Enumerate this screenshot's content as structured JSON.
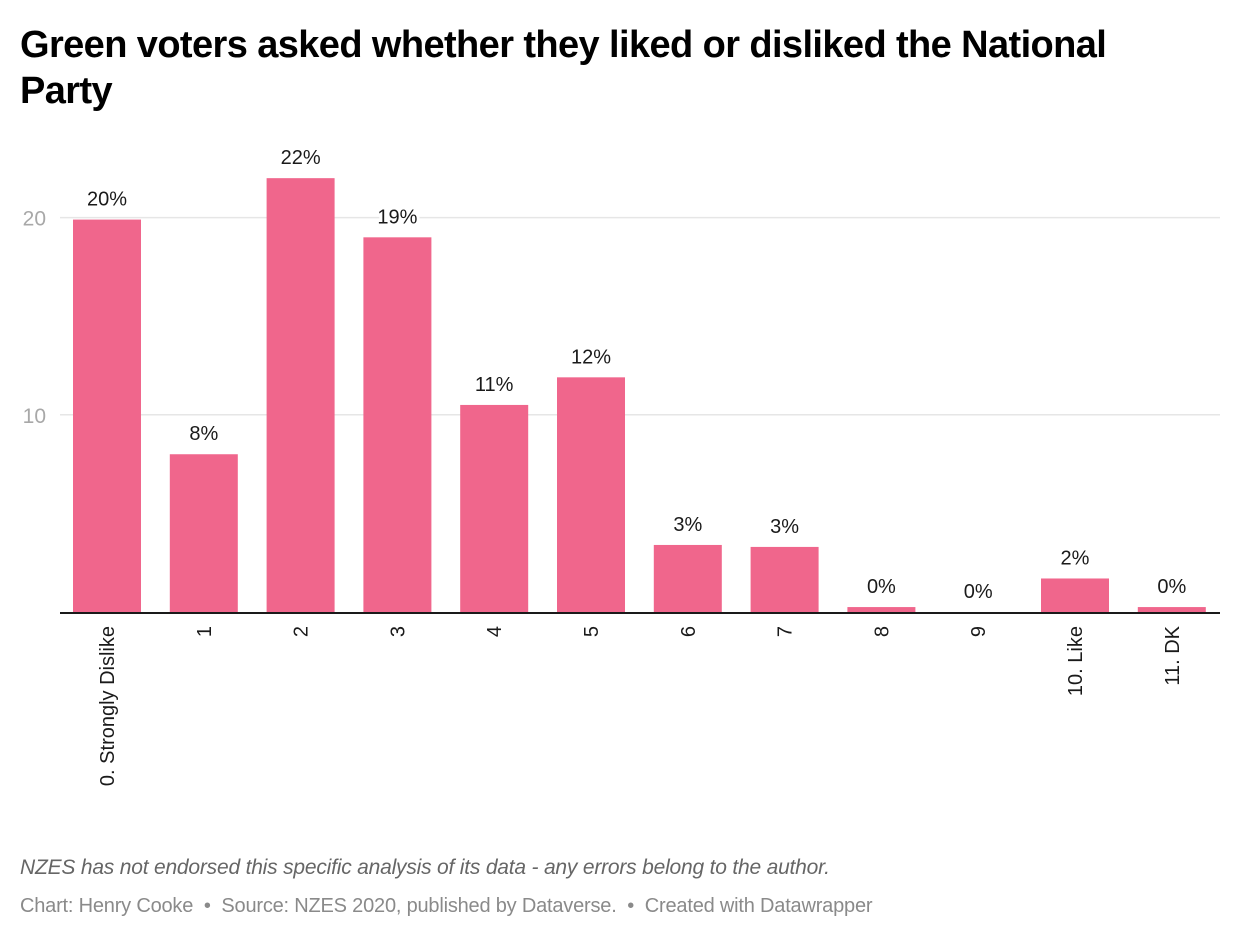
{
  "header": {
    "title": "Green voters asked whether they liked or disliked the National Party"
  },
  "chart_data": {
    "type": "bar",
    "title": "Green voters asked whether they liked or disliked the National Party",
    "xlabel": "",
    "ylabel": "",
    "categories": [
      "0. Strongly Dislike",
      "1",
      "2",
      "3",
      "4",
      "5",
      "6",
      "7",
      "8",
      "9",
      "10. Like",
      "11. DK"
    ],
    "values": [
      19.9,
      8.0,
      22.0,
      19.0,
      10.5,
      11.9,
      3.4,
      3.3,
      0.25,
      0.0,
      1.7,
      0.25
    ],
    "data_labels": [
      "20%",
      "8%",
      "22%",
      "19%",
      "11%",
      "12%",
      "3%",
      "3%",
      "0%",
      "0%",
      "2%",
      "0%"
    ],
    "ylim": [
      0,
      22
    ],
    "yticks": [
      10,
      20
    ],
    "ytick_labels": [
      "10",
      "20"
    ],
    "grid": true,
    "legend": "none",
    "bar_color": "#f0668c",
    "gridline_color": "#e6e6e6",
    "axis_color": "#1a1a1a"
  },
  "footer": {
    "note": "NZES has not endorsed this specific analysis of its data - any errors belong to the author.",
    "byline_parts": [
      "Chart: Henry Cooke",
      "Source: NZES 2020, published by Dataverse.",
      "Created with Datawrapper"
    ],
    "separator": "•"
  }
}
